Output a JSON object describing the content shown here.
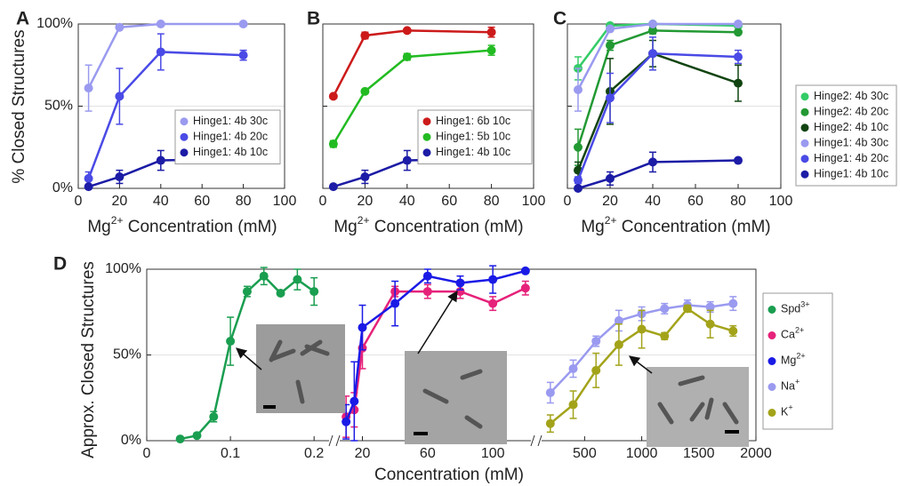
{
  "chart_data": [
    {
      "type": "line",
      "label": "A",
      "ylabel": "% Closed Structures",
      "xlabel": [
        "Mg",
        "2+",
        " Concentration (mM)"
      ],
      "x": [
        5,
        20,
        40,
        80
      ],
      "xlim": [
        0,
        100
      ],
      "xticks": [
        0,
        20,
        40,
        60,
        80,
        100
      ],
      "ylim": [
        0,
        100
      ],
      "yticks": [
        {
          "value": 0,
          "label": "0%"
        },
        {
          "value": 50,
          "label": "50%"
        },
        {
          "value": 100,
          "label": "100%"
        }
      ],
      "grid": true,
      "legend": "lower right",
      "series": [
        {
          "name": "Hinge1: 4b 30c",
          "color": "#9a9af0",
          "values": [
            61,
            98,
            100,
            100
          ],
          "errors": [
            14,
            1,
            0.5,
            0.5
          ]
        },
        {
          "name": "Hinge1: 4b 20c",
          "color": "#4a4ae6",
          "values": [
            6,
            56,
            83,
            81
          ],
          "errors": [
            4,
            17,
            11,
            3
          ]
        },
        {
          "name": "Hinge1: 4b 10c",
          "color": "#1c1ca6",
          "values": [
            1,
            7,
            17,
            18
          ],
          "errors": [
            1,
            4,
            6,
            1
          ]
        }
      ]
    },
    {
      "type": "line",
      "label": "B",
      "xlabel": [
        "Mg",
        "2+",
        " Concentration (mM)"
      ],
      "x": [
        5,
        20,
        40,
        80
      ],
      "xlim": [
        0,
        100
      ],
      "xticks": [
        0,
        20,
        40,
        60,
        80,
        100
      ],
      "ylim": [
        0,
        100
      ],
      "yticks": [
        0,
        50,
        100
      ],
      "grid": true,
      "legend": "lower right",
      "series": [
        {
          "name": "Hinge1: 6b 10c",
          "color": "#cc1a1a",
          "values": [
            56,
            93,
            96,
            95
          ],
          "errors": [
            1,
            2,
            1,
            3
          ]
        },
        {
          "name": "Hinge1: 5b 10c",
          "color": "#22bb22",
          "values": [
            27,
            59,
            80,
            84
          ],
          "errors": [
            2,
            1,
            2,
            3
          ]
        },
        {
          "name": "Hinge1: 4b 10c",
          "color": "#1c1ca6",
          "values": [
            1,
            7,
            17,
            18
          ],
          "errors": [
            1,
            4,
            6,
            1
          ]
        }
      ]
    },
    {
      "type": "line",
      "label": "C",
      "xlabel": [
        "Mg",
        "2+",
        " Concentration (mM)"
      ],
      "x": [
        5,
        20,
        40,
        80
      ],
      "xlim": [
        0,
        100
      ],
      "xticks": [
        0,
        20,
        40,
        60,
        80,
        100
      ],
      "ylim": [
        0,
        100
      ],
      "yticks": [
        0,
        50,
        100
      ],
      "grid": true,
      "legend": "outside right",
      "series": [
        {
          "name": "Hinge2: 4b 30c",
          "color": "#33cc66",
          "values": [
            73,
            99,
            100,
            99
          ],
          "errors": [
            7,
            1,
            0.5,
            0.5
          ]
        },
        {
          "name": "Hinge2: 4b 20c",
          "color": "#229933",
          "values": [
            25,
            87,
            96,
            95
          ],
          "errors": [
            11,
            3,
            2,
            1
          ]
        },
        {
          "name": "Hinge2: 4b 10c",
          "color": "#114411",
          "values": [
            11,
            59,
            82,
            64
          ],
          "errors": [
            5,
            20,
            8,
            11
          ]
        },
        {
          "name": "Hinge1: 4b 30c",
          "color": "#9a9af0",
          "values": [
            60,
            97,
            100,
            100
          ],
          "errors": [
            13,
            1,
            0.5,
            0.5
          ]
        },
        {
          "name": "Hinge1: 4b 20c",
          "color": "#4a4ae6",
          "values": [
            5,
            55,
            82,
            80
          ],
          "errors": [
            2,
            15,
            10,
            4
          ]
        },
        {
          "name": "Hinge1: 4b 10c",
          "color": "#1c1ca6",
          "values": [
            0,
            6,
            16,
            17
          ],
          "errors": [
            1,
            4,
            6,
            1
          ]
        }
      ]
    },
    {
      "type": "line",
      "label": "D",
      "ylabel": "Approx. Closed Structures",
      "xlabel": [
        "Concentration (mM)"
      ],
      "x_segments": [
        {
          "xlim": [
            0,
            0.22
          ],
          "xticks": [
            0,
            0.1,
            0.2
          ]
        },
        {
          "xlim": [
            5,
            125
          ],
          "xticks": [
            20,
            60,
            100
          ]
        },
        {
          "xlim": [
            100,
            2000
          ],
          "xticks": [
            500,
            1000,
            1500,
            2000
          ]
        }
      ],
      "ylim": [
        0,
        100
      ],
      "yticks": [
        {
          "value": 0,
          "label": "0%"
        },
        {
          "value": 50,
          "label": "50%"
        },
        {
          "value": 100,
          "label": "100%"
        }
      ],
      "grid": true,
      "legend": "outside right",
      "series": [
        {
          "name": "Spd",
          "name_sup": "3+",
          "color": "#1a9e50",
          "segment": 0,
          "x": [
            0.04,
            0.06,
            0.08,
            0.1,
            0.12,
            0.14,
            0.16,
            0.18,
            0.2
          ],
          "values": [
            1,
            3,
            14,
            58,
            87,
            96,
            86,
            94,
            87
          ],
          "errors": [
            0.5,
            1,
            3,
            14,
            3,
            5,
            1,
            6,
            8
          ]
        },
        {
          "name": "Ca",
          "name_sup": "2+",
          "color": "#e6227a",
          "segment": 1,
          "x": [
            10,
            15,
            20,
            40,
            60,
            80,
            100,
            120
          ],
          "values": [
            14,
            18,
            54,
            87,
            87,
            87,
            80,
            89
          ],
          "errors": [
            12,
            10,
            12,
            3,
            4,
            4,
            4,
            4
          ]
        },
        {
          "name": "Mg",
          "name_sup": "2+",
          "color": "#1a1ae6",
          "segment": 1,
          "x": [
            10,
            15,
            20,
            40,
            60,
            80,
            100,
            120
          ],
          "values": [
            11,
            23,
            66,
            80,
            96,
            92,
            94,
            99
          ],
          "errors": [
            10,
            23,
            13,
            13,
            4,
            4,
            8,
            1
          ]
        },
        {
          "name": "Na",
          "name_sup": "+",
          "color": "#9a9af0",
          "segment": 2,
          "x": [
            200,
            400,
            600,
            800,
            1000,
            1200,
            1400,
            1600,
            1800
          ],
          "values": [
            28,
            42,
            58,
            70,
            74,
            77,
            79,
            78,
            80
          ],
          "errors": [
            6,
            5,
            3,
            6,
            4,
            3,
            3,
            3,
            4
          ]
        },
        {
          "name": "K",
          "name_sup": "+",
          "color": "#a3a31a",
          "segment": 2,
          "x": [
            200,
            400,
            600,
            800,
            1000,
            1200,
            1400,
            1600,
            1800
          ],
          "values": [
            10,
            21,
            41,
            56,
            65,
            61,
            77,
            68,
            64
          ],
          "errors": [
            5,
            8,
            10,
            12,
            11,
            2,
            2,
            8,
            3
          ]
        }
      ]
    }
  ]
}
